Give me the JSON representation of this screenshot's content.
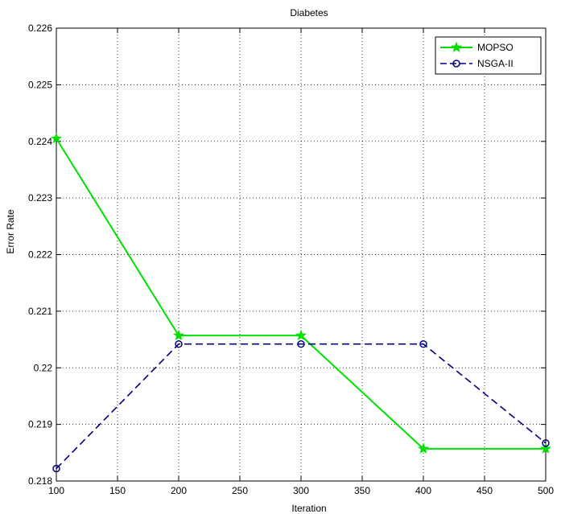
{
  "chart_data": {
    "type": "line",
    "title": "Diabetes",
    "xlabel": "Iteration",
    "ylabel": "Error Rate",
    "x": [
      100,
      200,
      300,
      400,
      500
    ],
    "xlim": [
      100,
      500
    ],
    "ylim": [
      0.218,
      0.226
    ],
    "xticks": [
      100,
      150,
      200,
      250,
      300,
      350,
      400,
      450,
      500
    ],
    "yticks": [
      0.218,
      0.219,
      0.22,
      0.221,
      0.222,
      0.223,
      0.224,
      0.225,
      0.226
    ],
    "xtick_labels": [
      "100",
      "150",
      "200",
      "250",
      "300",
      "350",
      "400",
      "450",
      "500"
    ],
    "ytick_labels": [
      "0.218",
      "0.219",
      "0.22",
      "0.221",
      "0.222",
      "0.223",
      "0.224",
      "0.225",
      "0.226"
    ],
    "grid": true,
    "legend_position": "top-right",
    "series": [
      {
        "name": "MOPSO",
        "values": [
          0.22405,
          0.22057,
          0.22057,
          0.21857,
          0.21857
        ],
        "step": true,
        "color": "#00e000",
        "line_style": "solid",
        "marker": "star"
      },
      {
        "name": "NSGA-II",
        "values": [
          0.21822,
          0.22042,
          0.22042,
          0.22042,
          0.21867
        ],
        "step": false,
        "color": "#000080",
        "line_style": "dashed",
        "marker": "circle"
      }
    ]
  }
}
